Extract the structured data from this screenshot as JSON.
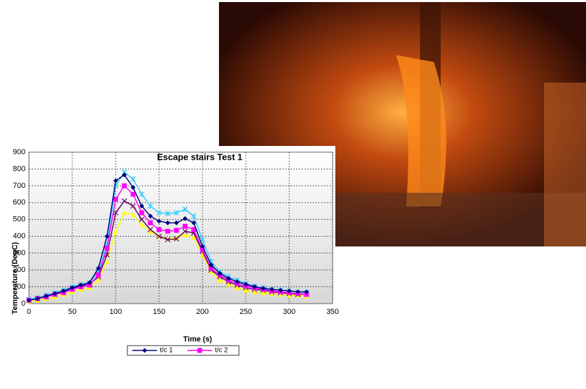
{
  "chart_data": {
    "type": "line",
    "title": "Escape stairs Test 1",
    "x_label": "Time (s)",
    "y_label": "Temperature (DegC)",
    "x": [
      0,
      10,
      20,
      30,
      40,
      50,
      60,
      70,
      80,
      90,
      100,
      110,
      120,
      130,
      140,
      150,
      160,
      170,
      180,
      190,
      200,
      210,
      220,
      230,
      240,
      250,
      260,
      270,
      280,
      290,
      300,
      310,
      320
    ],
    "series": [
      {
        "name": "t/c 1",
        "color": "#000080",
        "marker": "diamond",
        "values": [
          20,
          30,
          45,
          60,
          75,
          95,
          110,
          125,
          210,
          400,
          730,
          765,
          690,
          580,
          520,
          490,
          480,
          480,
          505,
          480,
          340,
          230,
          180,
          150,
          130,
          115,
          100,
          90,
          85,
          80,
          75,
          70,
          70
        ]
      },
      {
        "name": "t/c 2",
        "color": "#ff00ff",
        "marker": "square",
        "values": [
          20,
          30,
          40,
          55,
          65,
          85,
          100,
          110,
          170,
          330,
          620,
          700,
          650,
          540,
          480,
          440,
          430,
          435,
          460,
          440,
          320,
          210,
          170,
          140,
          120,
          105,
          95,
          85,
          75,
          70,
          65,
          60,
          55
        ]
      },
      {
        "color": "#ffff00",
        "marker": "triangle",
        "values": [
          15,
          20,
          30,
          40,
          55,
          70,
          85,
          95,
          140,
          250,
          430,
          540,
          530,
          470,
          430,
          400,
          385,
          390,
          410,
          395,
          290,
          190,
          140,
          115,
          95,
          80,
          70,
          65,
          60,
          55,
          50,
          50,
          45
        ]
      },
      {
        "color": "#660066",
        "marker": "cross",
        "values": [
          20,
          30,
          40,
          55,
          70,
          90,
          105,
          115,
          160,
          290,
          540,
          610,
          580,
          500,
          440,
          400,
          380,
          385,
          430,
          420,
          310,
          200,
          160,
          130,
          110,
          95,
          85,
          80,
          70,
          65,
          60,
          55,
          55
        ]
      },
      {
        "color": "#33ccff",
        "marker": "star",
        "values": [
          25,
          35,
          50,
          65,
          80,
          100,
          115,
          125,
          190,
          350,
          700,
          780,
          740,
          650,
          580,
          540,
          535,
          540,
          560,
          520,
          380,
          250,
          190,
          160,
          140,
          120,
          105,
          95,
          85,
          80,
          75,
          70,
          65
        ]
      }
    ],
    "xlim": [
      0,
      350
    ],
    "xticks": [
      0,
      50,
      100,
      150,
      200,
      250,
      300,
      350
    ],
    "ylim": [
      0,
      900
    ],
    "yticks": [
      0,
      100,
      200,
      300,
      400,
      500,
      600,
      700,
      800,
      900
    ],
    "grid": true
  }
}
